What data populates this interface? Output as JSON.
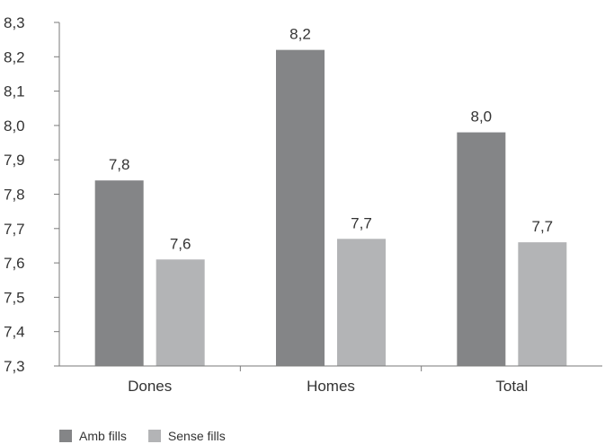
{
  "chart_data": {
    "type": "bar",
    "categories": [
      "Dones",
      "Homes",
      "Total"
    ],
    "series": [
      {
        "name": "Amb fills",
        "values": [
          7.84,
          8.22,
          7.98
        ],
        "labels": [
          "7,8",
          "8,2",
          "8,0"
        ],
        "color": "#848587"
      },
      {
        "name": "Sense fills",
        "values": [
          7.61,
          7.67,
          7.66
        ],
        "labels": [
          "7,6",
          "7,7",
          "7,7"
        ],
        "color": "#b3b4b6"
      }
    ],
    "ylim": [
      7.3,
      8.3
    ],
    "yticks": [
      "7,3",
      "7,4",
      "7,5",
      "7,6",
      "7,7",
      "7,8",
      "7,9",
      "8,0",
      "8,1",
      "8,2",
      "8,3"
    ],
    "ytick_values": [
      7.3,
      7.4,
      7.5,
      7.6,
      7.7,
      7.8,
      7.9,
      8.0,
      8.1,
      8.2,
      8.3
    ],
    "title": "",
    "xlabel": "",
    "ylabel": "",
    "grid": false,
    "legend_position": "bottom-left"
  }
}
